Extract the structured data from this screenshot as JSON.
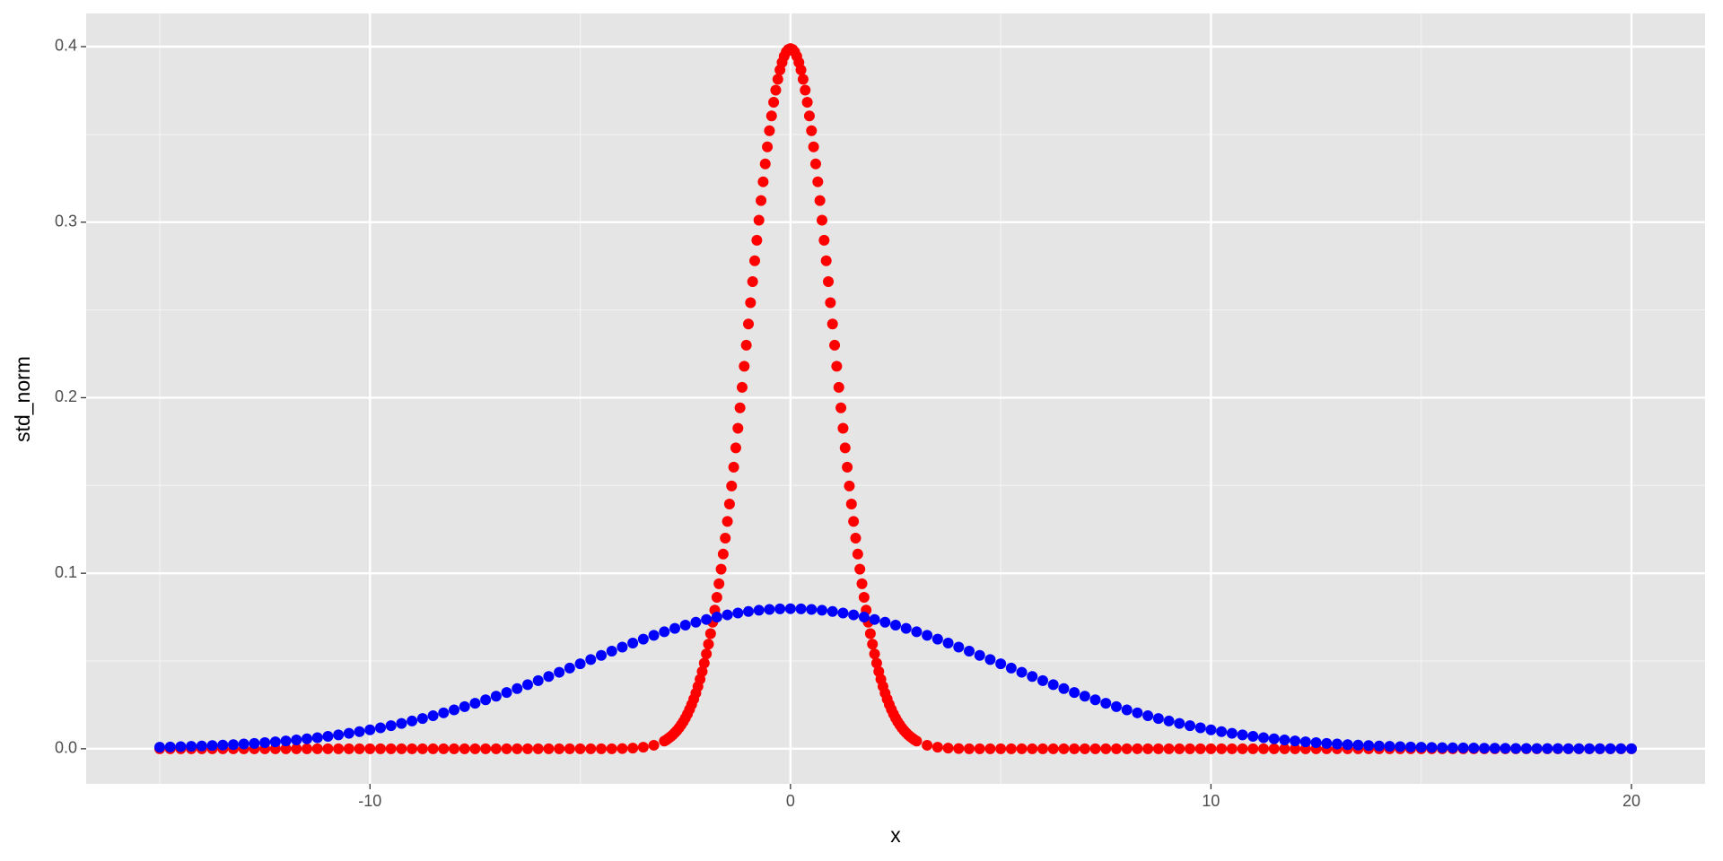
{
  "chart_data": {
    "type": "scatter",
    "xlabel": "x",
    "ylabel": "std_norm",
    "xlim": [
      -16.75,
      21.75
    ],
    "ylim": [
      -0.02,
      0.4189
    ],
    "xticks": [
      -10,
      0,
      10,
      20
    ],
    "yticks": [
      {
        "value": 0,
        "label": "0.0"
      },
      0.1,
      0.2,
      0.3,
      0.4
    ],
    "x_minor_ticks": [
      -15,
      -5,
      5,
      15
    ],
    "y_minor_ticks": [
      0.05,
      0.15,
      0.25,
      0.35
    ],
    "grid": true,
    "series": [
      {
        "color": "#ff0000",
        "x": [
          -15,
          -14.75,
          -14.5,
          -14.25,
          -14,
          -13.75,
          -13.5,
          -13.25,
          -13,
          -12.75,
          -12.5,
          -12.25,
          -12,
          -11.75,
          -11.5,
          -11.25,
          -11,
          -10.75,
          -10.5,
          -10.25,
          -10,
          -9.75,
          -9.5,
          -9.25,
          -9,
          -8.75,
          -8.5,
          -8.25,
          -8,
          -7.75,
          -7.5,
          -7.25,
          -7,
          -6.75,
          -6.5,
          -6.25,
          -6,
          -5.75,
          -5.5,
          -5.25,
          -5,
          -4.75,
          -4.5,
          -4.25,
          -4,
          -3.75,
          -3.5,
          -3.25,
          -3,
          -2.95,
          -2.9,
          -2.85,
          -2.8,
          -2.75,
          -2.7,
          -2.65,
          -2.6,
          -2.55,
          -2.5,
          -2.45,
          -2.4,
          -2.35,
          -2.3,
          -2.25,
          -2.2,
          -2.15,
          -2.1,
          -2.05,
          -2,
          -1.95,
          -1.9,
          -1.85,
          -1.8,
          -1.75,
          -1.7,
          -1.65,
          -1.6,
          -1.55,
          -1.5,
          -1.45,
          -1.4,
          -1.35,
          -1.3,
          -1.25,
          -1.2,
          -1.15,
          -1.1,
          -1.05,
          -1,
          -0.95,
          -0.9,
          -0.85,
          -0.8,
          -0.75,
          -0.7,
          -0.65,
          -0.6,
          -0.55,
          -0.5,
          -0.45,
          -0.4,
          -0.35,
          -0.3,
          -0.25,
          -0.2,
          -0.15,
          -0.1,
          -0.05,
          0,
          0.05,
          0.1,
          0.15,
          0.2,
          0.25,
          0.3,
          0.35,
          0.4,
          0.45,
          0.5,
          0.55,
          0.6,
          0.65,
          0.7,
          0.75,
          0.8,
          0.85,
          0.9,
          0.95,
          1,
          1.05,
          1.1,
          1.15,
          1.2,
          1.25,
          1.3,
          1.35,
          1.4,
          1.45,
          1.5,
          1.55,
          1.6,
          1.65,
          1.7,
          1.75,
          1.8,
          1.85,
          1.9,
          1.95,
          2,
          2.05,
          2.1,
          2.15,
          2.2,
          2.25,
          2.3,
          2.35,
          2.4,
          2.45,
          2.5,
          2.55,
          2.6,
          2.65,
          2.7,
          2.75,
          2.8,
          2.85,
          2.9,
          2.95,
          3,
          3.25,
          3.5,
          3.75,
          4,
          4.25,
          4.5,
          4.75,
          5,
          5.25,
          5.5,
          5.75,
          6,
          6.25,
          6.5,
          6.75,
          7,
          7.25,
          7.5,
          7.75,
          8,
          8.25,
          8.5,
          8.75,
          9,
          9.25,
          9.5,
          9.75,
          10,
          10.25,
          10.5,
          10.75,
          11,
          11.25,
          11.5,
          11.75,
          12,
          12.25,
          12.5,
          12.75,
          13,
          13.25,
          13.5,
          13.75,
          14,
          14.25,
          14.5,
          14.75,
          15,
          15.25,
          15.5,
          15.75,
          16,
          16.25,
          16.5,
          16.75,
          17,
          17.25,
          17.5,
          17.75,
          18,
          18.25,
          18.5,
          18.75,
          19,
          19.25,
          19.5,
          19.75,
          20
        ],
        "values": [
          0,
          0,
          0,
          0,
          0,
          0,
          0,
          0,
          0,
          0,
          0,
          0,
          0,
          0,
          0,
          0,
          0,
          0,
          0,
          0,
          0,
          0,
          0,
          0,
          0,
          0,
          0,
          0,
          0,
          0,
          0,
          0,
          0,
          0,
          0,
          0,
          0,
          0,
          0,
          0,
          0,
          0,
          0,
          0,
          0.0001,
          0.0004,
          0.0009,
          0.002,
          0.0044,
          0.0051,
          0.006,
          0.0069,
          0.0079,
          0.0091,
          0.0104,
          0.0119,
          0.0136,
          0.0154,
          0.0175,
          0.0198,
          0.0224,
          0.0252,
          0.0283,
          0.0317,
          0.0355,
          0.0396,
          0.044,
          0.0488,
          0.054,
          0.0596,
          0.0656,
          0.0721,
          0.079,
          0.0863,
          0.094,
          0.1023,
          0.1109,
          0.12,
          0.1295,
          0.1394,
          0.1497,
          0.1604,
          0.1714,
          0.1826,
          0.1942,
          0.2059,
          0.2179,
          0.2299,
          0.242,
          0.2541,
          0.2661,
          0.278,
          0.2897,
          0.3011,
          0.3123,
          0.323,
          0.3332,
          0.3429,
          0.3521,
          0.3605,
          0.3683,
          0.3752,
          0.3814,
          0.3867,
          0.391,
          0.3945,
          0.397,
          0.3984,
          0.3989,
          0.3984,
          0.397,
          0.3945,
          0.391,
          0.3867,
          0.3814,
          0.3752,
          0.3683,
          0.3605,
          0.3521,
          0.3429,
          0.3332,
          0.323,
          0.3123,
          0.3011,
          0.2897,
          0.278,
          0.2661,
          0.2541,
          0.242,
          0.2299,
          0.2179,
          0.2059,
          0.1942,
          0.1826,
          0.1714,
          0.1604,
          0.1497,
          0.1394,
          0.1295,
          0.12,
          0.1109,
          0.1023,
          0.094,
          0.0863,
          0.079,
          0.0721,
          0.0656,
          0.0596,
          0.054,
          0.0488,
          0.044,
          0.0396,
          0.0355,
          0.0317,
          0.0283,
          0.0252,
          0.0224,
          0.0198,
          0.0175,
          0.0154,
          0.0136,
          0.0119,
          0.0104,
          0.0091,
          0.0079,
          0.0069,
          0.006,
          0.0051,
          0.0044,
          0.002,
          0.0009,
          0.0004,
          0.0001,
          0,
          0,
          0,
          0,
          0,
          0,
          0,
          0,
          0,
          0,
          0,
          0,
          0,
          0,
          0,
          0,
          0,
          0,
          0,
          0,
          0,
          0,
          0,
          0,
          0,
          0,
          0,
          0,
          0,
          0,
          0,
          0,
          0,
          0,
          0,
          0,
          0,
          0,
          0,
          0,
          0,
          0,
          0,
          0,
          0,
          0,
          0,
          0,
          0,
          0,
          0,
          0,
          0,
          0,
          0,
          0,
          0,
          0,
          0,
          0,
          0,
          0,
          0,
          0
        ]
      },
      {
        "color": "#0000ff",
        "x": [
          -15,
          -14.75,
          -14.5,
          -14.25,
          -14,
          -13.75,
          -13.5,
          -13.25,
          -13,
          -12.75,
          -12.5,
          -12.25,
          -12,
          -11.75,
          -11.5,
          -11.25,
          -11,
          -10.75,
          -10.5,
          -10.25,
          -10,
          -9.75,
          -9.5,
          -9.25,
          -9,
          -8.75,
          -8.5,
          -8.25,
          -8,
          -7.75,
          -7.5,
          -7.25,
          -7,
          -6.75,
          -6.5,
          -6.25,
          -6,
          -5.75,
          -5.5,
          -5.25,
          -5,
          -4.75,
          -4.5,
          -4.25,
          -4,
          -3.75,
          -3.5,
          -3.25,
          -3,
          -2.75,
          -2.5,
          -2.25,
          -2,
          -1.75,
          -1.5,
          -1.25,
          -1,
          -0.75,
          -0.5,
          -0.25,
          0,
          0.25,
          0.5,
          0.75,
          1,
          1.25,
          1.5,
          1.75,
          2,
          2.25,
          2.5,
          2.75,
          3,
          3.25,
          3.5,
          3.75,
          4,
          4.25,
          4.5,
          4.75,
          5,
          5.25,
          5.5,
          5.75,
          6,
          6.25,
          6.5,
          6.75,
          7,
          7.25,
          7.5,
          7.75,
          8,
          8.25,
          8.5,
          8.75,
          9,
          9.25,
          9.5,
          9.75,
          10,
          10.25,
          10.5,
          10.75,
          11,
          11.25,
          11.5,
          11.75,
          12,
          12.25,
          12.5,
          12.75,
          13,
          13.25,
          13.5,
          13.75,
          14,
          14.25,
          14.5,
          14.75,
          15,
          15.25,
          15.5,
          15.75,
          16,
          16.25,
          16.5,
          16.75,
          17,
          17.25,
          17.5,
          17.75,
          18,
          18.25,
          18.5,
          18.75,
          19,
          19.25,
          19.5,
          19.75,
          20
        ],
        "values": [
          0.00088,
          0.00102,
          0.0012,
          0.00138,
          0.00158,
          0.00182,
          0.00208,
          0.00238,
          0.00272,
          0.00308,
          0.0035,
          0.00396,
          0.00448,
          0.00504,
          0.00566,
          0.00634,
          0.0071,
          0.00792,
          0.0088,
          0.00976,
          0.0108,
          0.01192,
          0.01312,
          0.01442,
          0.0158,
          0.01726,
          0.0188,
          0.02046,
          0.02218,
          0.024,
          0.0259,
          0.02788,
          0.02994,
          0.03208,
          0.03428,
          0.03652,
          0.03884,
          0.04118,
          0.04358,
          0.04598,
          0.0484,
          0.05082,
          0.05322,
          0.0556,
          0.05794,
          0.06022,
          0.06246,
          0.0646,
          0.06664,
          0.06858,
          0.07042,
          0.0721,
          0.07366,
          0.07504,
          0.07628,
          0.07734,
          0.0782,
          0.0789,
          0.0794,
          0.07968,
          0.07979,
          0.07968,
          0.0794,
          0.0789,
          0.0782,
          0.07734,
          0.07628,
          0.07504,
          0.07366,
          0.0721,
          0.07042,
          0.06858,
          0.06664,
          0.0646,
          0.06246,
          0.06022,
          0.05794,
          0.0556,
          0.05322,
          0.05082,
          0.0484,
          0.04598,
          0.04358,
          0.04118,
          0.03884,
          0.03652,
          0.03428,
          0.03208,
          0.02994,
          0.02788,
          0.0259,
          0.024,
          0.02218,
          0.02046,
          0.0188,
          0.01726,
          0.0158,
          0.01442,
          0.01312,
          0.01192,
          0.0108,
          0.00976,
          0.0088,
          0.00792,
          0.0071,
          0.00634,
          0.00566,
          0.00504,
          0.00448,
          0.00396,
          0.0035,
          0.00308,
          0.00272,
          0.00238,
          0.00208,
          0.00182,
          0.00158,
          0.00138,
          0.0012,
          0.00102,
          0.00088,
          0.00076,
          0.00065,
          0.00056,
          0.00048,
          0.00041,
          0.00034,
          0.00029,
          0.00025,
          0.00021,
          0.00017,
          0.00015,
          0.00012,
          0.0001,
          8e-05,
          7e-05,
          6e-05,
          5e-05,
          4e-05,
          3e-05,
          3e-05
        ]
      }
    ]
  }
}
